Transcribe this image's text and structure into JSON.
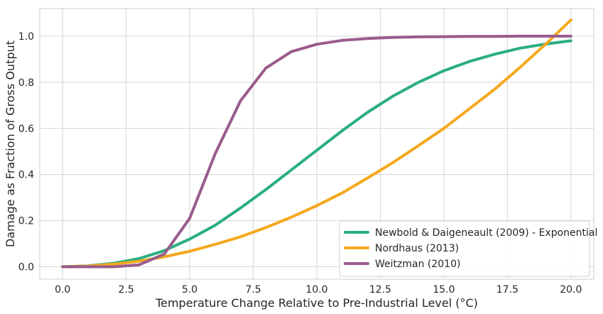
{
  "chart_data": {
    "type": "line",
    "title": "",
    "xlabel": "Temperature Change Relative to Pre-Industrial Level (°C)",
    "ylabel": "Damage as Fraction of Gross Output",
    "xlim": [
      -0.9,
      20.9
    ],
    "ylim": [
      -0.054,
      1.12
    ],
    "xticks": [
      0,
      2.5,
      5,
      7.5,
      10,
      12.5,
      15,
      17.5,
      20
    ],
    "xtick_labels": [
      "0.0",
      "2.5",
      "5.0",
      "7.5",
      "10.0",
      "12.5",
      "15.0",
      "17.5",
      "20.0"
    ],
    "yticks": [
      0,
      0.2,
      0.4,
      0.6,
      0.8,
      1.0
    ],
    "ytick_labels": [
      "0.0",
      "0.2",
      "0.4",
      "0.6",
      "0.8",
      "1.0"
    ],
    "grid": true,
    "legend_position": "bottom-right",
    "x": [
      0,
      1,
      2,
      3,
      4,
      5,
      6,
      7,
      8,
      9,
      10,
      11,
      12,
      13,
      14,
      15,
      16,
      17,
      18,
      19,
      20
    ],
    "series": [
      {
        "name": "Newbold & Daigeneault (2009) - Exponential",
        "color": "#2aae80",
        "values": [
          0.0,
          0.004,
          0.015,
          0.035,
          0.07,
          0.12,
          0.18,
          0.255,
          0.335,
          0.42,
          0.505,
          0.59,
          0.67,
          0.74,
          0.8,
          0.85,
          0.89,
          0.922,
          0.948,
          0.966,
          0.98
        ]
      },
      {
        "name": "Nordhaus (2013)",
        "color": "#f5a81d",
        "values": [
          0.0,
          0.003,
          0.011,
          0.024,
          0.043,
          0.067,
          0.097,
          0.13,
          0.17,
          0.215,
          0.265,
          0.32,
          0.385,
          0.452,
          0.525,
          0.6,
          0.685,
          0.77,
          0.865,
          0.965,
          1.07
        ]
      },
      {
        "name": "Weitzman (2010)",
        "color": "#9a5b8c",
        "values": [
          0.0,
          0.0,
          0.0,
          0.008,
          0.055,
          0.21,
          0.49,
          0.72,
          0.862,
          0.933,
          0.965,
          0.982,
          0.99,
          0.995,
          0.997,
          0.998,
          0.999,
          0.999,
          1.0,
          1.0,
          1.0
        ]
      }
    ]
  }
}
